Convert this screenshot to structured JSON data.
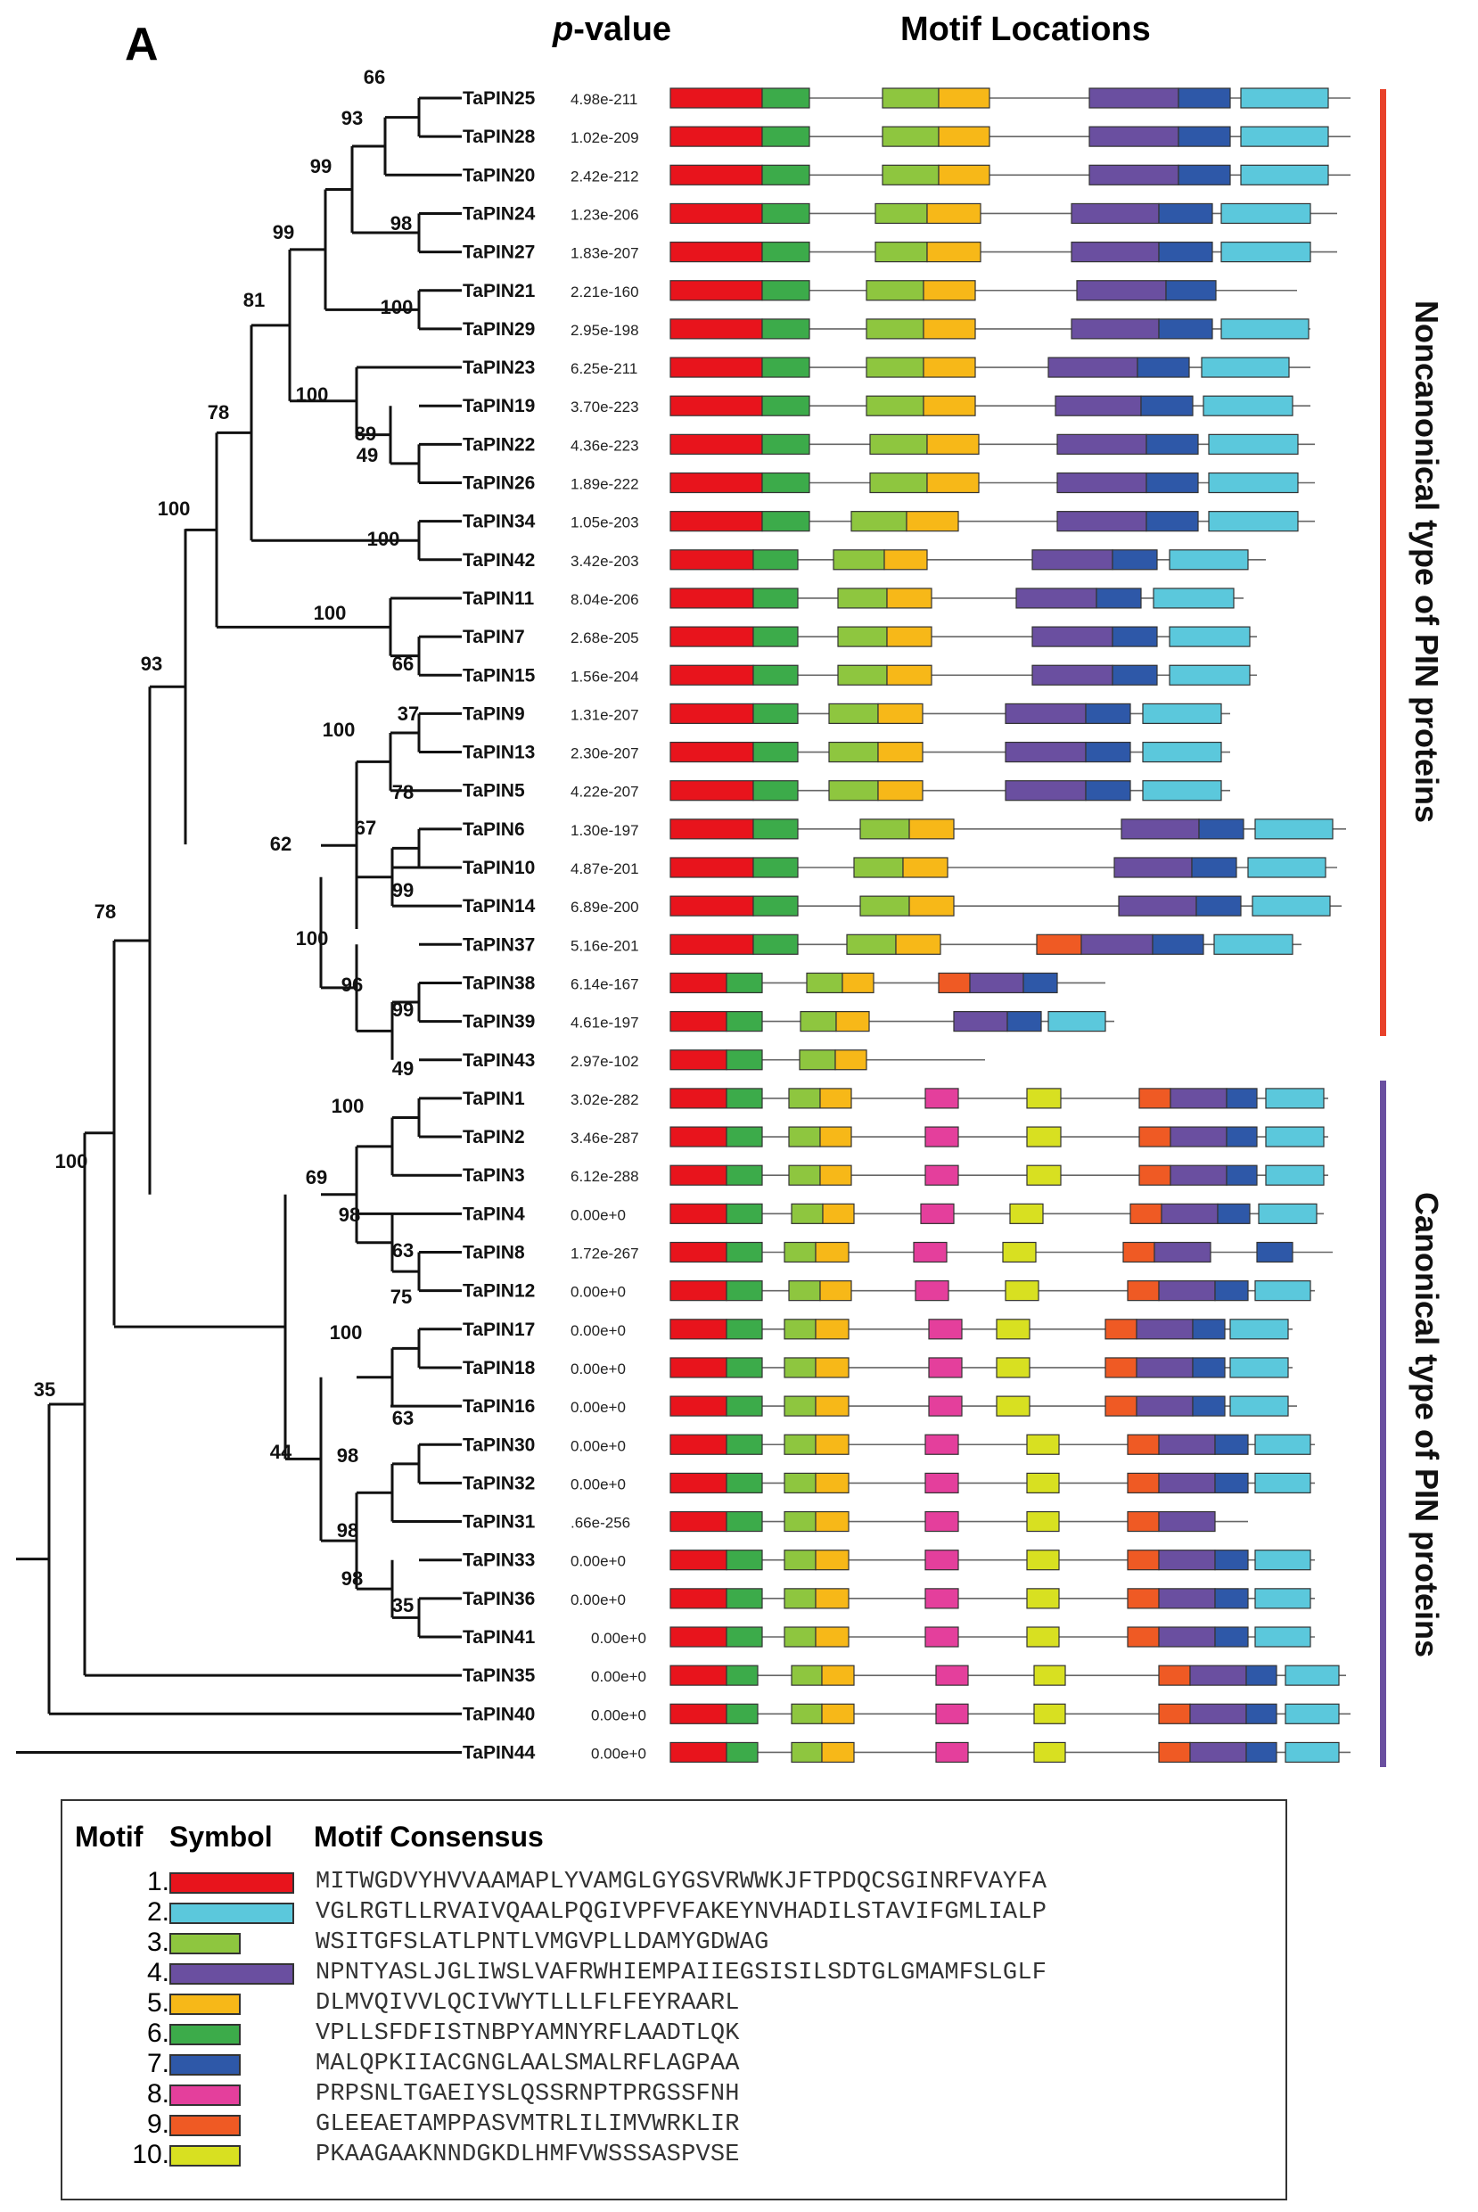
{
  "panel_label": "A",
  "header": {
    "pvalue_italic": "p",
    "pvalue_rest": "-value",
    "motif_locations": "Motif Locations"
  },
  "side_labels": {
    "noncanonical": "Noncanonical type of PIN proteins",
    "canonical": "Canonical type of PIN proteins"
  },
  "colors": {
    "m1": "#e8141c",
    "m2": "#5bc8dc",
    "m3": "#8ec63f",
    "m4": "#6a4fa0",
    "m5": "#f7b818",
    "m6": "#3cab4a",
    "m7": "#2e58a8",
    "m8": "#e43f9c",
    "m9": "#ef5a24",
    "m10": "#d8e021",
    "noncanonical_bar": "#e8412a",
    "canonical_bar": "#6a4fa0"
  },
  "proteins": [
    {
      "name": "TaPIN25",
      "pvalue": "4.98e-211"
    },
    {
      "name": "TaPIN28",
      "pvalue": "1.02e-209"
    },
    {
      "name": "TaPIN20",
      "pvalue": "2.42e-212"
    },
    {
      "name": "TaPIN24",
      "pvalue": "1.23e-206"
    },
    {
      "name": "TaPIN27",
      "pvalue": "1.83e-207"
    },
    {
      "name": "TaPIN21",
      "pvalue": "2.21e-160"
    },
    {
      "name": "TaPIN29",
      "pvalue": "2.95e-198"
    },
    {
      "name": "TaPIN23",
      "pvalue": "6.25e-211"
    },
    {
      "name": "TaPIN19",
      "pvalue": "3.70e-223"
    },
    {
      "name": "TaPIN22",
      "pvalue": "4.36e-223"
    },
    {
      "name": "TaPIN26",
      "pvalue": "1.89e-222"
    },
    {
      "name": "TaPIN34",
      "pvalue": "1.05e-203"
    },
    {
      "name": "TaPIN42",
      "pvalue": "3.42e-203"
    },
    {
      "name": "TaPIN11",
      "pvalue": "8.04e-206"
    },
    {
      "name": "TaPIN7",
      "pvalue": "2.68e-205"
    },
    {
      "name": "TaPIN15",
      "pvalue": "1.56e-204"
    },
    {
      "name": "TaPIN9",
      "pvalue": "1.31e-207"
    },
    {
      "name": "TaPIN13",
      "pvalue": "2.30e-207"
    },
    {
      "name": "TaPIN5",
      "pvalue": "4.22e-207"
    },
    {
      "name": "TaPIN6",
      "pvalue": "1.30e-197"
    },
    {
      "name": "TaPIN10",
      "pvalue": "4.87e-201"
    },
    {
      "name": "TaPIN14",
      "pvalue": "6.89e-200"
    },
    {
      "name": "TaPIN37",
      "pvalue": "5.16e-201"
    },
    {
      "name": "TaPIN38",
      "pvalue": "6.14e-167"
    },
    {
      "name": "TaPIN39",
      "pvalue": "4.61e-197"
    },
    {
      "name": "TaPIN43",
      "pvalue": "2.97e-102"
    },
    {
      "name": "TaPIN1",
      "pvalue": "3.02e-282"
    },
    {
      "name": "TaPIN2",
      "pvalue": "3.46e-287"
    },
    {
      "name": "TaPIN3",
      "pvalue": "6.12e-288"
    },
    {
      "name": "TaPIN4",
      "pvalue": "0.00e+0"
    },
    {
      "name": "TaPIN8",
      "pvalue": "1.72e-267"
    },
    {
      "name": "TaPIN12",
      "pvalue": "0.00e+0"
    },
    {
      "name": "TaPIN17",
      "pvalue": "0.00e+0"
    },
    {
      "name": "TaPIN18",
      "pvalue": "0.00e+0"
    },
    {
      "name": "TaPIN16",
      "pvalue": "0.00e+0"
    },
    {
      "name": "TaPIN30",
      "pvalue": "0.00e+0"
    },
    {
      "name": "TaPIN32",
      "pvalue": "0.00e+0"
    },
    {
      "name": "TaPIN31",
      "pvalue": ".66e-256"
    },
    {
      "name": "TaPIN33",
      "pvalue": "0.00e+0"
    },
    {
      "name": "TaPIN36",
      "pvalue": "0.00e+0"
    },
    {
      "name": "TaPIN41",
      "pvalue": "0.00e+0"
    },
    {
      "name": "TaPIN35",
      "pvalue": "0.00e+0"
    },
    {
      "name": "TaPIN40",
      "pvalue": "0.00e+0"
    },
    {
      "name": "TaPIN44",
      "pvalue": "0.00e+0"
    }
  ],
  "bootstrap_values": [
    "66",
    "93",
    "99",
    "98",
    "99",
    "100",
    "81",
    "100",
    "89",
    "49",
    "78",
    "100",
    "100",
    "100",
    "66",
    "37",
    "100",
    "78",
    "67",
    "62",
    "99",
    "100",
    "96",
    "99",
    "93",
    "49",
    "100",
    "69",
    "98",
    "63",
    "78",
    "75",
    "100",
    "63",
    "98",
    "98",
    "98",
    "35",
    "44",
    "100",
    "35"
  ],
  "legend": {
    "headers": {
      "motif": "Motif",
      "symbol": "Symbol",
      "consensus": "Motif Consensus"
    },
    "motifs": [
      {
        "num": "1.",
        "color": "#e8141c",
        "consensus": "MITWGDVYHVVAAMAPLYVAMGLGYGSVRWWKJFTPDQCSGINRFVAYFA"
      },
      {
        "num": "2.",
        "color": "#5bc8dc",
        "consensus": "VGLRGTLLRVAIVQAALPQGIVPFVFAKEYNVHADILSTAVIFGMLIALP"
      },
      {
        "num": "3.",
        "color": "#8ec63f",
        "consensus": "WSITGFSLATLPNTLVMGVPLLDAMYGDWAG"
      },
      {
        "num": "4.",
        "color": "#6a4fa0",
        "consensus": "NPNTYASLJGLIWSLVAFRWHIEMPAIIEGSISILSDTGLGMAMFSLGLF"
      },
      {
        "num": "5.",
        "color": "#f7b818",
        "consensus": "DLMVQIVVLQCIVWYTLLLFLFEYRAARL"
      },
      {
        "num": "6.",
        "color": "#3cab4a",
        "consensus": "VPLLSFDFISTNBPYAMNYRFLAADTLQK"
      },
      {
        "num": "7.",
        "color": "#2e58a8",
        "consensus": "MALQPKIIACGNGLAALSMALRFLAGPAA"
      },
      {
        "num": "8.",
        "color": "#e43f9c",
        "consensus": "PRPSNLTGAEIYSLQSSRNPTPRGSSFNH"
      },
      {
        "num": "9.",
        "color": "#ef5a24",
        "consensus": "GLEEAETAMPPASVMTRLILIMVWRKLIR"
      },
      {
        "num": "10.",
        "color": "#d8e021",
        "consensus": "PKAAGAAKNNDGKDLHMFVWSSSASPVSE"
      }
    ]
  }
}
